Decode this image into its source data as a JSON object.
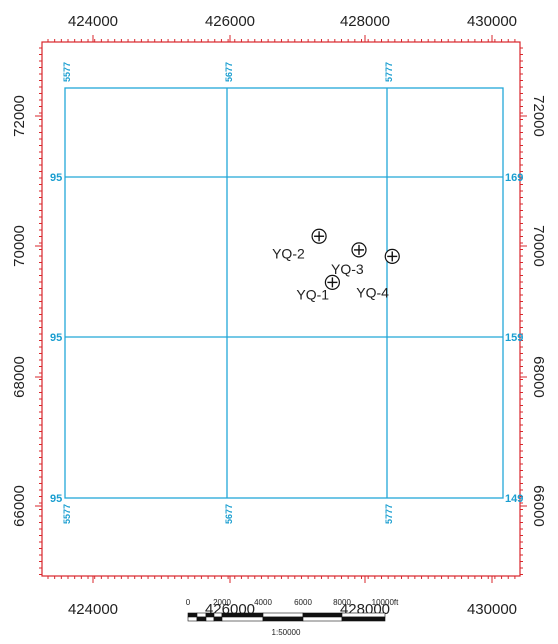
{
  "map": {
    "x_ticks": [
      "424000",
      "426000",
      "428000",
      "430000"
    ],
    "y_ticks": [
      "72000",
      "70000",
      "68000",
      "66000"
    ],
    "colors": {
      "frame": "#d8262b",
      "grid": "#22a7d8",
      "text": "#222222"
    }
  },
  "grid_labels": {
    "top": [
      "5577",
      "5677",
      "5777"
    ],
    "bottom": [
      "5577",
      "5677",
      "5777"
    ],
    "left": [
      "95",
      "95",
      "95"
    ],
    "right": [
      "169",
      "159",
      "149"
    ]
  },
  "wells": [
    {
      "name": "YQ-2",
      "easting": 427400,
      "northing": 70150
    },
    {
      "name": "YQ-3",
      "easting": 428000,
      "northing": 69940
    },
    {
      "name": "YQ-4",
      "easting": 428500,
      "northing": 69840
    },
    {
      "name": "YQ-1",
      "easting": 427600,
      "northing": 69440
    }
  ],
  "scale_bar": {
    "labels": [
      "0",
      "2000",
      "4000",
      "6000",
      "8000",
      "10000ft"
    ],
    "ratio": "1:50000"
  }
}
